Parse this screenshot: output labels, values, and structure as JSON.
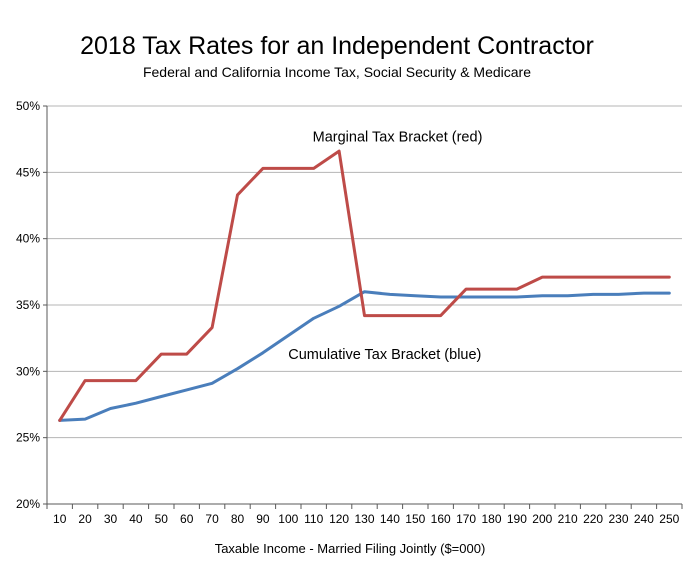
{
  "page": {
    "background": "#ffffff"
  },
  "chart_data": {
    "type": "line",
    "title": "2018 Tax Rates for an Independent Contractor",
    "subtitle": "Federal and California Income Tax, Social Security & Medicare",
    "xlabel": "Taxable Income - Married Filing Jointly ($=000)",
    "ylabel": "",
    "categories": [
      10,
      20,
      30,
      40,
      50,
      60,
      70,
      80,
      90,
      100,
      110,
      120,
      130,
      140,
      150,
      160,
      170,
      180,
      190,
      200,
      210,
      220,
      230,
      240,
      250
    ],
    "series": [
      {
        "name": "Marginal Tax Bracket",
        "color": "#be4b48",
        "values": [
          26.3,
          29.3,
          29.3,
          29.3,
          31.3,
          31.3,
          33.3,
          43.3,
          45.3,
          45.3,
          45.3,
          46.6,
          34.2,
          34.2,
          34.2,
          34.2,
          36.2,
          36.2,
          36.2,
          37.1,
          37.1,
          37.1,
          37.1,
          37.1,
          37.1
        ]
      },
      {
        "name": "Cumulative Tax Bracket",
        "color": "#4a7ebb",
        "values": [
          26.3,
          26.4,
          27.2,
          27.6,
          28.1,
          28.6,
          29.1,
          30.2,
          31.4,
          32.7,
          34.0,
          34.9,
          36.0,
          35.8,
          35.7,
          35.6,
          35.6,
          35.6,
          35.6,
          35.7,
          35.7,
          35.8,
          35.8,
          35.9,
          35.9
        ]
      }
    ],
    "annotations": [
      {
        "text": "Marginal Tax Bracket (red)",
        "x": 143,
        "y": 47.7
      },
      {
        "text": "Cumulative Tax Bracket (blue)",
        "x": 138,
        "y": 31.3
      }
    ],
    "ylim": [
      20,
      50
    ],
    "ytick_step": 5,
    "ytick_labels": [
      "20%",
      "25%",
      "30%",
      "35%",
      "40%",
      "45%",
      "50%"
    ],
    "grid": true,
    "legend": "none",
    "grid_color": "#b5b5b5",
    "axis_color": "#595959",
    "text_color": "#000000"
  }
}
